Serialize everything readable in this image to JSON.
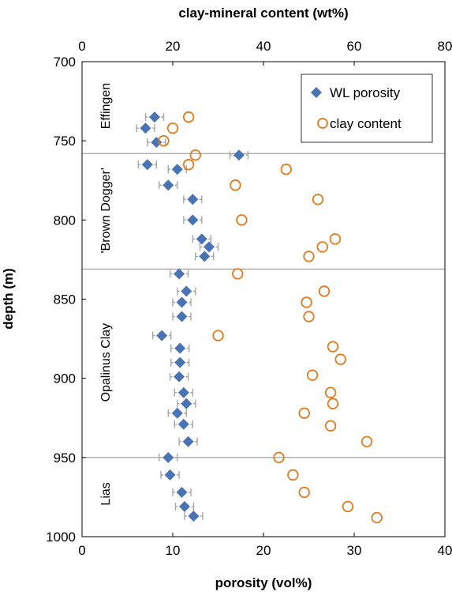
{
  "chart_data": {
    "type": "scatter",
    "title": "",
    "xlabel": "porosity (vol%)",
    "x2label": "clay-mineral content (wt%)",
    "ylabel": "depth (m)",
    "xlim": [
      0,
      40
    ],
    "x2lim": [
      0,
      80
    ],
    "ylim": [
      700,
      1000
    ],
    "y_inverted": true,
    "xticks": [
      "0",
      "10",
      "20",
      "30",
      "40"
    ],
    "x2ticks": [
      "0",
      "20",
      "40",
      "60",
      "80"
    ],
    "yticks": [
      "700",
      "750",
      "800",
      "850",
      "900",
      "950",
      "1000"
    ],
    "legend_position": "top-right",
    "grid": false,
    "colors": {
      "wl_porosity": "#4a73b3",
      "clay_content": "#e07a1f",
      "error_bar": "#a6a6a6",
      "boundary": "#8c8c8c",
      "axis": "#000000"
    },
    "boundaries": [
      758,
      831,
      950
    ],
    "unit_labels": [
      {
        "text": "Effingen",
        "depth": 728
      },
      {
        "text": "'Brown Dogger'",
        "depth": 794
      },
      {
        "text": "Opalinus Clay",
        "depth": 890
      },
      {
        "text": "Lias",
        "depth": 973
      }
    ],
    "series": [
      {
        "name": "WL porosity",
        "axis": "bottom",
        "marker": "diamond",
        "error_x": 1.0,
        "points": [
          {
            "x": 8.0,
            "y": 735
          },
          {
            "x": 7.0,
            "y": 742
          },
          {
            "x": 8.2,
            "y": 751
          },
          {
            "x": 17.3,
            "y": 759
          },
          {
            "x": 7.2,
            "y": 765
          },
          {
            "x": 10.5,
            "y": 768
          },
          {
            "x": 9.5,
            "y": 778
          },
          {
            "x": 12.2,
            "y": 787
          },
          {
            "x": 12.2,
            "y": 800
          },
          {
            "x": 13.2,
            "y": 812
          },
          {
            "x": 14.0,
            "y": 817
          },
          {
            "x": 13.5,
            "y": 823
          },
          {
            "x": 10.7,
            "y": 834
          },
          {
            "x": 11.5,
            "y": 845
          },
          {
            "x": 11.0,
            "y": 852
          },
          {
            "x": 11.0,
            "y": 861
          },
          {
            "x": 8.8,
            "y": 873
          },
          {
            "x": 10.8,
            "y": 881
          },
          {
            "x": 10.8,
            "y": 890
          },
          {
            "x": 10.7,
            "y": 899
          },
          {
            "x": 11.2,
            "y": 909
          },
          {
            "x": 11.5,
            "y": 916
          },
          {
            "x": 10.5,
            "y": 922
          },
          {
            "x": 11.2,
            "y": 929
          },
          {
            "x": 11.7,
            "y": 940
          },
          {
            "x": 9.5,
            "y": 950
          },
          {
            "x": 9.7,
            "y": 961
          },
          {
            "x": 11.0,
            "y": 972
          },
          {
            "x": 11.3,
            "y": 981
          },
          {
            "x": 12.3,
            "y": 987
          }
        ]
      },
      {
        "name": "clay content",
        "axis": "top",
        "marker": "circle",
        "points": [
          {
            "x": 23.5,
            "y": 735
          },
          {
            "x": 20.0,
            "y": 742
          },
          {
            "x": 18.0,
            "y": 750
          },
          {
            "x": 25.0,
            "y": 759
          },
          {
            "x": 23.5,
            "y": 765
          },
          {
            "x": 45.0,
            "y": 768
          },
          {
            "x": 33.8,
            "y": 778
          },
          {
            "x": 52.0,
            "y": 787
          },
          {
            "x": 35.2,
            "y": 800
          },
          {
            "x": 55.8,
            "y": 812
          },
          {
            "x": 53.0,
            "y": 817
          },
          {
            "x": 50.0,
            "y": 823
          },
          {
            "x": 34.3,
            "y": 834
          },
          {
            "x": 53.4,
            "y": 845
          },
          {
            "x": 49.5,
            "y": 852
          },
          {
            "x": 50.0,
            "y": 861
          },
          {
            "x": 30.0,
            "y": 873
          },
          {
            "x": 55.3,
            "y": 880
          },
          {
            "x": 57.0,
            "y": 888
          },
          {
            "x": 50.8,
            "y": 898
          },
          {
            "x": 54.8,
            "y": 909
          },
          {
            "x": 55.3,
            "y": 916
          },
          {
            "x": 49.0,
            "y": 922
          },
          {
            "x": 54.8,
            "y": 930
          },
          {
            "x": 62.8,
            "y": 940
          },
          {
            "x": 43.4,
            "y": 950
          },
          {
            "x": 46.5,
            "y": 961
          },
          {
            "x": 49.0,
            "y": 972
          },
          {
            "x": 58.6,
            "y": 981
          },
          {
            "x": 65.0,
            "y": 988
          }
        ]
      }
    ]
  }
}
